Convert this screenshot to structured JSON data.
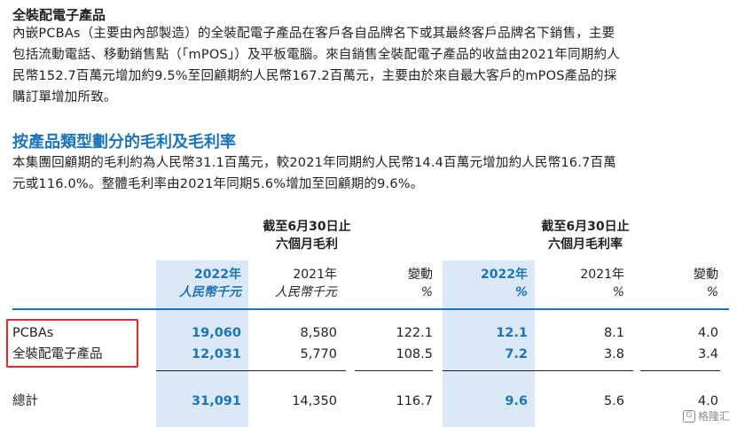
{
  "section1": {
    "title": "全裝配電子產品",
    "lines": [
      "內嵌PCBAs（主要由內部製造）的全裝配電子產品在客戶各自品牌名下或其最終客戶品牌名下銷售，主要",
      "包括流動電話、移動銷售點（「mPOS」）及平板電腦。來自銷售全裝配電子產品的收益由2021年同期約人",
      "民幣152.7百萬元增加約9.5%至回顧期約人民幣167.2百萬元，主要由於來自最大客戶的mPOS產品的採",
      "購訂單增加所致。"
    ]
  },
  "section2": {
    "title": "按產品類型劃分的毛利及毛利率",
    "lines": [
      "本集團回顧期的毛利約為人民幣31.1百萬元，較2021年同期約人民幣14.4百萬元增加約人民幣16.7百萬",
      "元或116.0%。整體毛利率由2021年同期5.6%增加至回顧期的9.6%。"
    ]
  },
  "table": {
    "group1": {
      "line1": "截至6月30日止",
      "line2": "六個月毛利"
    },
    "group2": {
      "line1": "截至6月30日止",
      "line2": "六個月毛利率"
    },
    "columns": [
      {
        "year": "2022年",
        "unit": "人民幣千元"
      },
      {
        "year": "2021年",
        "unit": "人民幣千元"
      },
      {
        "year": "變動",
        "unit": "%"
      },
      {
        "year": "2022年",
        "unit": "%"
      },
      {
        "year": "2021年",
        "unit": "%"
      },
      {
        "year": "變動",
        "unit": "%"
      }
    ],
    "rows": [
      {
        "label": "PCBAs",
        "values": [
          "19,060",
          "8,580",
          "122.1",
          "12.1",
          "8.1",
          "4.0"
        ]
      },
      {
        "label": "全裝配電子產品",
        "values": [
          "12,031",
          "5,770",
          "108.5",
          "7.2",
          "3.8",
          "3.4"
        ]
      }
    ],
    "total": {
      "label": "總計",
      "values": [
        "31,091",
        "14,350",
        "116.7",
        "9.6",
        "5.6",
        "4.0"
      ]
    }
  },
  "watermark": {
    "icon": "gelonghui-logo-icon",
    "text": "格隆汇"
  },
  "colors": {
    "accent": "#1c75bc",
    "shade": "#dbe8f5",
    "highlight": "#e8262b"
  }
}
